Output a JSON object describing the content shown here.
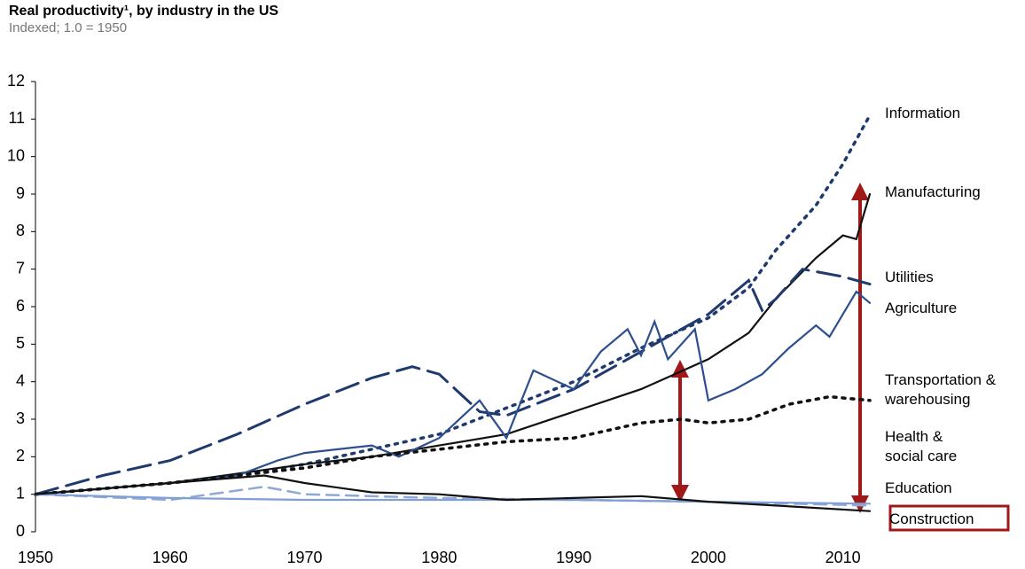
{
  "chart_data": {
    "type": "line",
    "title": "Real productivity¹, by industry in the US",
    "subtitle": "Indexed;  1.0 = 1950",
    "xlim": [
      1950,
      2012
    ],
    "xticks": [
      1950,
      1960,
      1970,
      1980,
      1990,
      2000,
      2010
    ],
    "ylim": [
      0,
      12
    ],
    "yticks": [
      0,
      1,
      2,
      3,
      4,
      5,
      6,
      7,
      8,
      9,
      10,
      11,
      12
    ],
    "series": [
      {
        "name": "Information",
        "color": "#1f3a6e",
        "dash": "dotted",
        "x": [
          1950,
          1955,
          1960,
          1965,
          1970,
          1975,
          1980,
          1985,
          1990,
          1995,
          2000,
          2003,
          2005,
          2008,
          2010,
          2012
        ],
        "values": [
          1.0,
          1.15,
          1.3,
          1.5,
          1.8,
          2.2,
          2.6,
          3.3,
          4.0,
          4.9,
          5.7,
          6.5,
          7.5,
          8.7,
          9.8,
          11.1
        ]
      },
      {
        "name": "Manufacturing",
        "color": "#111111",
        "dash": "solid",
        "x": [
          1950,
          1955,
          1960,
          1966,
          1970,
          1975,
          1980,
          1985,
          1990,
          1995,
          2000,
          2003,
          2005,
          2008,
          2010,
          2011,
          2012
        ],
        "values": [
          1.0,
          1.15,
          1.3,
          1.6,
          1.8,
          2.0,
          2.3,
          2.6,
          3.2,
          3.8,
          4.6,
          5.3,
          6.2,
          7.3,
          7.9,
          7.8,
          9.0
        ]
      },
      {
        "name": "Utilities",
        "color": "#1f3a6e",
        "dash": "long-dashed",
        "x": [
          1950,
          1955,
          1960,
          1965,
          1970,
          1975,
          1978,
          1980,
          1983,
          1985,
          1990,
          1995,
          2000,
          2003,
          2004,
          2005,
          2007,
          2010,
          2012
        ],
        "values": [
          1.0,
          1.5,
          1.9,
          2.6,
          3.4,
          4.1,
          4.4,
          4.2,
          3.2,
          3.1,
          3.8,
          4.8,
          5.8,
          6.7,
          5.9,
          6.2,
          7.0,
          6.8,
          6.6
        ]
      },
      {
        "name": "Agriculture",
        "color": "#2d4f8f",
        "dash": "solid",
        "x": [
          1950,
          1960,
          1965,
          1968,
          1970,
          1975,
          1977,
          1980,
          1983,
          1985,
          1987,
          1990,
          1992,
          1994,
          1995,
          1996,
          1997,
          1999,
          2000,
          2002,
          2004,
          2006,
          2008,
          2009,
          2011,
          2012
        ],
        "values": [
          1.0,
          1.3,
          1.5,
          1.9,
          2.1,
          2.3,
          2.0,
          2.5,
          3.5,
          2.5,
          4.3,
          3.8,
          4.8,
          5.4,
          4.7,
          5.6,
          4.6,
          5.4,
          3.5,
          3.8,
          4.2,
          4.9,
          5.5,
          5.2,
          6.4,
          6.1
        ]
      },
      {
        "name": "Transportation & warehousing",
        "color": "#111111",
        "dash": "dotted",
        "x": [
          1950,
          1960,
          1970,
          1975,
          1980,
          1985,
          1990,
          1995,
          1998,
          2000,
          2003,
          2006,
          2009,
          2012
        ],
        "values": [
          1.0,
          1.3,
          1.7,
          2.0,
          2.2,
          2.4,
          2.5,
          2.9,
          3.0,
          2.9,
          3.0,
          3.4,
          3.6,
          3.5
        ]
      },
      {
        "name": "Health & social care",
        "color": "#8fa8d8",
        "dash": "dashed",
        "x": [
          1950,
          1960,
          1967,
          1970,
          1980,
          1990,
          2000,
          2012
        ],
        "values": [
          1.0,
          0.85,
          1.2,
          1.0,
          0.9,
          0.85,
          0.8,
          0.7
        ]
      },
      {
        "name": "Education",
        "color": "#7f9fd6",
        "dash": "solid",
        "x": [
          1950,
          1960,
          1970,
          1980,
          1990,
          2000,
          2012
        ],
        "values": [
          1.0,
          0.9,
          0.85,
          0.85,
          0.85,
          0.8,
          0.75
        ]
      },
      {
        "name": "Construction",
        "color": "#111111",
        "dash": "solid",
        "x": [
          1950,
          1960,
          1967,
          1970,
          1975,
          1980,
          1985,
          1990,
          1995,
          2000,
          2005,
          2012
        ],
        "values": [
          1.0,
          1.3,
          1.5,
          1.3,
          1.05,
          1.0,
          0.85,
          0.9,
          0.95,
          0.8,
          0.7,
          0.55
        ]
      }
    ]
  }
}
